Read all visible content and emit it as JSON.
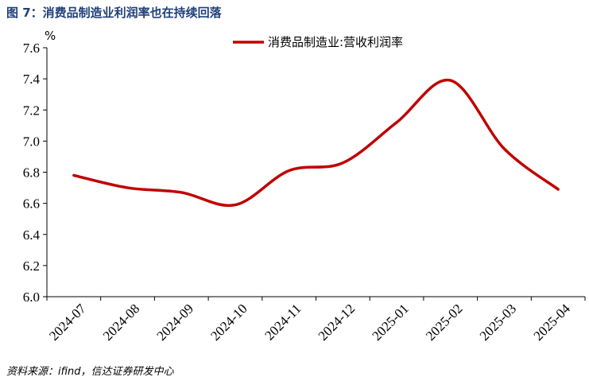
{
  "figure": {
    "title": "图 7：消费品制造业利润率也在持续回落",
    "source": "资料来源：ifind，信达证券研发中心"
  },
  "chart_data": {
    "type": "line",
    "title": "",
    "xlabel": "",
    "ylabel": "%",
    "categories": [
      "2024-07",
      "2024-08",
      "2024-09",
      "2024-10",
      "2024-11",
      "2024-12",
      "2025-01",
      "2025-02",
      "2025-03",
      "2025-04"
    ],
    "yticks": [
      "6.0",
      "6.2",
      "6.4",
      "6.6",
      "6.8",
      "7.0",
      "7.2",
      "7.4",
      "7.6"
    ],
    "ylim": [
      6.0,
      7.6
    ],
    "grid": false,
    "legend": "top-right",
    "series": [
      {
        "name": "消费品制造业:营收利润率",
        "color": "#c00000",
        "values": [
          6.78,
          6.7,
          6.67,
          6.59,
          6.81,
          6.86,
          7.12,
          7.39,
          6.95,
          6.69
        ]
      }
    ]
  }
}
